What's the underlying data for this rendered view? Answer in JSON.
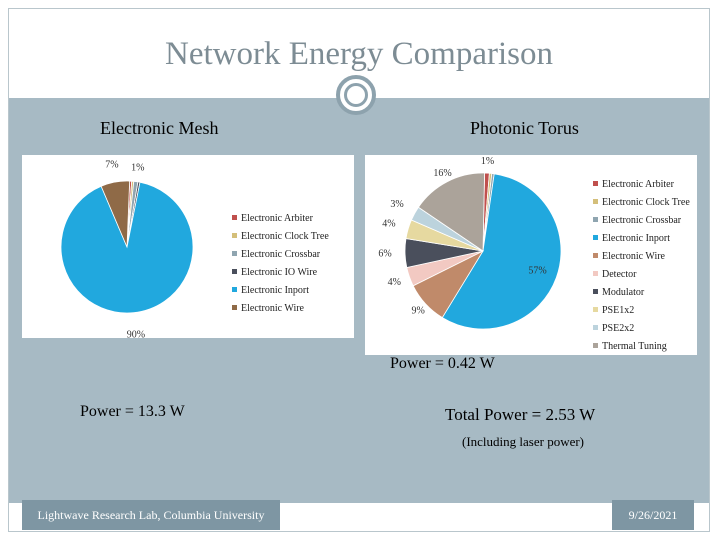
{
  "title": "Network Energy Comparison",
  "mesh": {
    "heading": "Electronic Mesh",
    "power": "Power = 13.3 W"
  },
  "torus": {
    "heading": "Photonic Torus",
    "power": "Power = 0.42 W",
    "total": "Total Power = 2.53 W",
    "note": "(Including laser power)"
  },
  "footer": {
    "lab": "Lightwave Research Lab, Columbia University",
    "date": "9/26/2021"
  },
  "chart_data": [
    {
      "type": "pie",
      "labels": [
        "Electronic Arbiter",
        "Electronic Clock Tree",
        "Electronic Crossbar",
        "Electronic IO Wire",
        "Electronic Inport",
        "Electronic Wire"
      ],
      "values": [
        0.5,
        0.5,
        1,
        0.5,
        90,
        7
      ],
      "percent_labels": [
        "",
        "",
        "1%",
        "",
        "90%",
        "7%"
      ],
      "colors": [
        "#c0504d",
        "#d4bf7a",
        "#8fa5b0",
        "#4a4f5c",
        "#21a8de",
        "#8f6a47"
      ],
      "legend_position": "center-right"
    },
    {
      "type": "pie",
      "labels": [
        "Electronic Arbiter",
        "Electronic Clock Tree",
        "Electronic Crossbar",
        "Electronic Inport",
        "Electronic Wire",
        "Detector",
        "Modulator",
        "PSE1x2",
        "PSE2x2",
        "Thermal Tuning"
      ],
      "values": [
        1,
        0.5,
        0.5,
        57,
        9,
        4,
        6,
        4,
        3,
        16
      ],
      "percent_labels": [
        "1%",
        "",
        "",
        "57%",
        "9%",
        "4%",
        "6%",
        "4%",
        "3%",
        "16%"
      ],
      "colors": [
        "#c0504d",
        "#d4bf7a",
        "#8fa5b0",
        "#21a8de",
        "#c08a6a",
        "#f2c9c2",
        "#4a4f5c",
        "#e6d9a0",
        "#bcd3dd",
        "#aba39a"
      ],
      "legend_position": "right"
    }
  ]
}
